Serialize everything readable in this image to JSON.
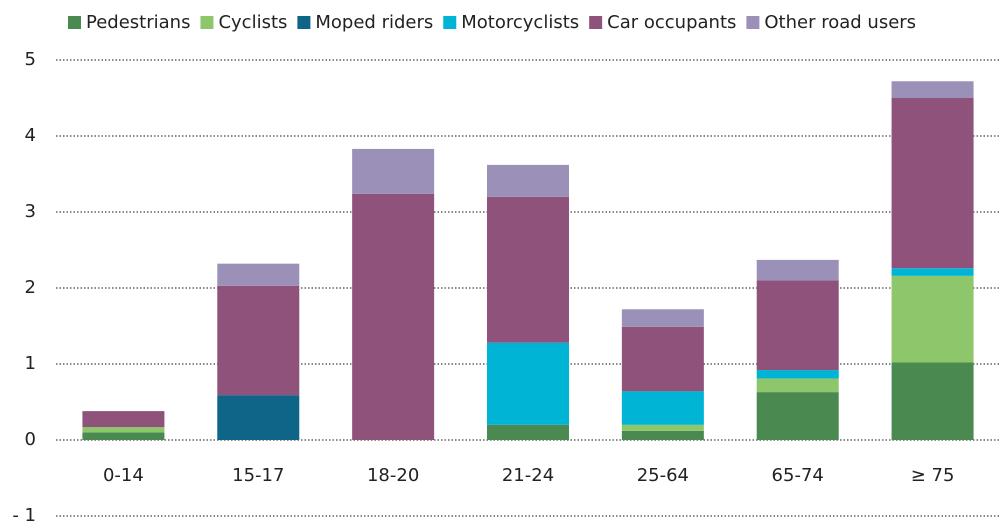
{
  "chart_data": {
    "type": "bar",
    "stacked": true,
    "categories": [
      "0-14",
      "15-17",
      "18-20",
      "21-24",
      "25-64",
      "65-74",
      "≥ 75"
    ],
    "series": [
      {
        "name": "Pedestrians",
        "color": "#4a8a50",
        "values": [
          0.1,
          0,
          0,
          0.2,
          0.12,
          0.63,
          1.02
        ]
      },
      {
        "name": "Cyclists",
        "color": "#8dc66b",
        "values": [
          0.07,
          0,
          0,
          0,
          0.08,
          0.18,
          1.14
        ]
      },
      {
        "name": "Moped riders",
        "color": "#0e6588",
        "values": [
          0,
          0.59,
          0,
          0,
          0,
          0,
          0
        ]
      },
      {
        "name": "Motorcyclists",
        "color": "#00b4d6",
        "values": [
          0,
          0,
          0,
          1.08,
          0.44,
          0.11,
          0.1
        ]
      },
      {
        "name": "Car occupants",
        "color": "#8e527b",
        "values": [
          0.21,
          1.44,
          3.24,
          1.92,
          0.85,
          1.18,
          2.24
        ]
      },
      {
        "name": "Other road users",
        "color": "#9a90b8",
        "values": [
          0,
          0.29,
          0.59,
          0.42,
          0.23,
          0.27,
          0.22
        ]
      }
    ],
    "ylim": [
      -1,
      5
    ],
    "yticks": [
      {
        "value": -1,
        "label": "- 1"
      },
      0,
      1,
      2,
      3,
      4,
      5
    ],
    "grid": true,
    "legend": "top"
  }
}
